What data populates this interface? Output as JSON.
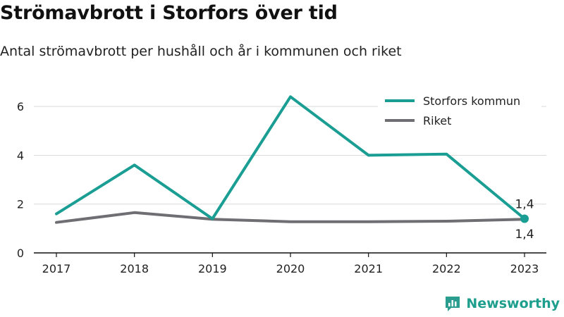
{
  "title": "Strömavbrott i Storfors över tid",
  "subtitle": "Antal strömavbrott per hushåll och år i kommunen och riket",
  "brand": {
    "name": "Newsworthy",
    "icon": "newsworthy-logo-icon"
  },
  "colors": {
    "storfors": "#1a9e93",
    "riket": "#6e6e73",
    "grid": "#d9d9d9",
    "axis": "#111111"
  },
  "chart_data": {
    "type": "line",
    "x": [
      "2017",
      "2018",
      "2019",
      "2020",
      "2021",
      "2022",
      "2023"
    ],
    "ylim": [
      0,
      6.9
    ],
    "yticks": [
      0,
      2,
      4,
      6
    ],
    "grid": true,
    "legend_position": "top-right",
    "series": [
      {
        "name": "Storfors kommun",
        "values": [
          1.6,
          3.6,
          1.4,
          6.4,
          4.0,
          4.05,
          1.4
        ],
        "end_label": "1,4"
      },
      {
        "name": "Riket",
        "values": [
          1.25,
          1.65,
          1.38,
          1.28,
          1.28,
          1.3,
          1.38
        ],
        "end_label": "1,4"
      }
    ]
  }
}
